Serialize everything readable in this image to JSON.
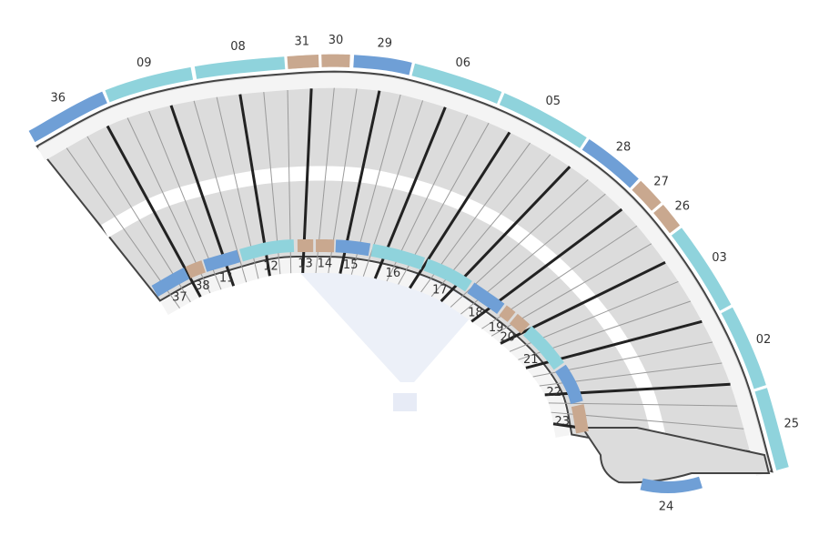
{
  "colors": {
    "teal": "#8fd3dc",
    "blue": "#6f9fd6",
    "tan": "#c9a88f"
  },
  "units": {
    "outer": [
      {
        "label": "36",
        "type": "blue"
      },
      {
        "label": "09",
        "type": "teal"
      },
      {
        "label": "08",
        "type": "teal"
      },
      {
        "label": "31",
        "type": "tan"
      },
      {
        "label": "30",
        "type": "tan"
      },
      {
        "label": "29",
        "type": "blue"
      },
      {
        "label": "06",
        "type": "teal"
      },
      {
        "label": "05",
        "type": "teal"
      },
      {
        "label": "28",
        "type": "blue"
      },
      {
        "label": "27",
        "type": "tan"
      },
      {
        "label": "26",
        "type": "tan"
      },
      {
        "label": "03",
        "type": "teal"
      },
      {
        "label": "02",
        "type": "teal"
      },
      {
        "label": "25",
        "type": "teal"
      }
    ],
    "inner": [
      {
        "label": "37",
        "type": "blue"
      },
      {
        "label": "38",
        "type": "tan"
      },
      {
        "label": "11",
        "type": "blue"
      },
      {
        "label": "12",
        "type": "teal"
      },
      {
        "label": "13",
        "type": "tan"
      },
      {
        "label": "14",
        "type": "tan"
      },
      {
        "label": "15",
        "type": "blue"
      },
      {
        "label": "16",
        "type": "teal"
      },
      {
        "label": "17",
        "type": "teal"
      },
      {
        "label": "18",
        "type": "blue"
      },
      {
        "label": "19",
        "type": "tan"
      },
      {
        "label": "20",
        "type": "tan"
      },
      {
        "label": "21",
        "type": "teal"
      },
      {
        "label": "22",
        "type": "blue"
      },
      {
        "label": "23",
        "type": "tan"
      }
    ],
    "bottom": {
      "label": "24",
      "type": "blue"
    }
  }
}
